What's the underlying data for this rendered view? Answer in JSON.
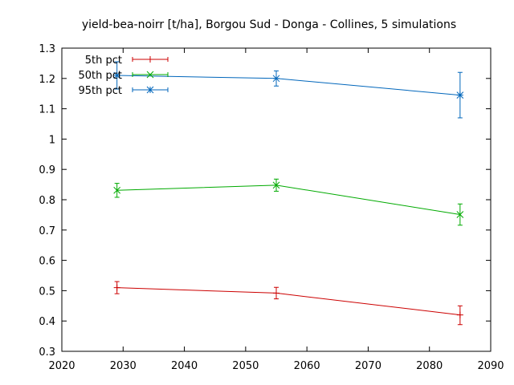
{
  "chart_data": {
    "type": "line",
    "title": "yield-bea-noirr [t/ha], Borgou Sud - Donga - Collines, 5 simulations",
    "xlabel": "",
    "ylabel": "",
    "xlim": [
      2020,
      2090
    ],
    "ylim": [
      0.3,
      1.3
    ],
    "x_ticks": [
      "2020",
      "2030",
      "2040",
      "2050",
      "2060",
      "2070",
      "2080",
      "2090"
    ],
    "y_ticks": [
      "0.3",
      "0.4",
      "0.5",
      "0.6",
      "0.7",
      "0.8",
      "0.9",
      "1",
      "1.1",
      "1.2",
      "1.3"
    ],
    "grid": false,
    "legend_position": "top-left",
    "x": [
      2029,
      2055,
      2085
    ],
    "series": [
      {
        "name": "5th pct",
        "color": "#cc0000",
        "marker": "plus",
        "values": [
          0.51,
          0.492,
          0.42
        ],
        "err_low": [
          0.49,
          0.473,
          0.388
        ],
        "err_high": [
          0.53,
          0.511,
          0.45
        ]
      },
      {
        "name": "50th pct",
        "color": "#00aa00",
        "marker": "x",
        "values": [
          0.831,
          0.848,
          0.751
        ],
        "err_low": [
          0.808,
          0.828,
          0.716
        ],
        "err_high": [
          0.854,
          0.868,
          0.786
        ]
      },
      {
        "name": "95th pct",
        "color": "#0066bb",
        "marker": "star",
        "values": [
          1.21,
          1.2,
          1.145
        ],
        "err_low": [
          1.165,
          1.175,
          1.07
        ],
        "err_high": [
          1.255,
          1.225,
          1.22
        ]
      }
    ]
  }
}
